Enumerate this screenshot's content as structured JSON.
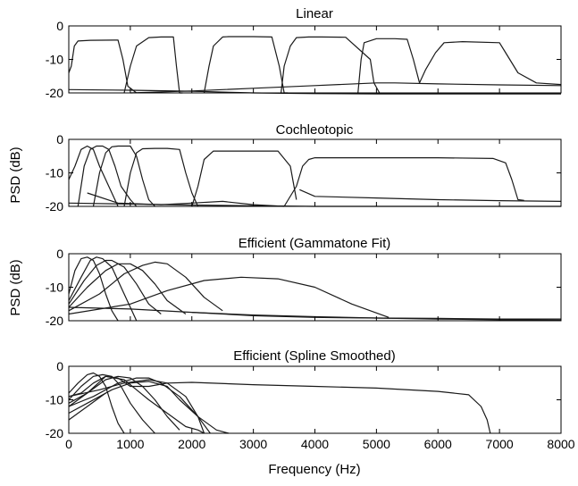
{
  "figure": {
    "xlabel": "Frequency (Hz)",
    "ylabel": "PSD (dB)"
  },
  "chart_data": [
    {
      "type": "line",
      "title": "Linear",
      "xlim": [
        0,
        8000
      ],
      "ylim": [
        -20,
        0
      ],
      "xticks": [],
      "yticks": [
        "0",
        "-10",
        "-20"
      ],
      "ylabel": "",
      "xlabel": "",
      "series": [
        {
          "x": [
            0,
            40,
            90,
            150,
            350,
            800,
            880,
            960,
            1100
          ],
          "y": [
            -14,
            -12,
            -6,
            -4.5,
            -4.3,
            -4.2,
            -10,
            -18,
            -20
          ]
        },
        {
          "x": [
            900,
            1000,
            1100,
            1300,
            1500,
            1700,
            1750,
            1800,
            1850
          ],
          "y": [
            -20,
            -12,
            -6,
            -3.5,
            -3.3,
            -3.3,
            -12,
            -20,
            -20
          ]
        },
        {
          "x": [
            2200,
            2280,
            2350,
            2500,
            2600,
            3000,
            3300,
            3420,
            3500,
            3560
          ],
          "y": [
            -20,
            -12,
            -6,
            -3.3,
            -3.2,
            -3.2,
            -3.3,
            -12,
            -20,
            -20
          ]
        },
        {
          "x": [
            3450,
            3500,
            3600,
            3700,
            3900,
            4100,
            4500,
            4900,
            4960,
            5050
          ],
          "y": [
            -20,
            -12,
            -6,
            -3.5,
            -3.3,
            -3.3,
            -3.4,
            -10,
            -17,
            -20
          ]
        },
        {
          "x": [
            4700,
            4750,
            4800,
            5000,
            5300,
            5500,
            5600,
            5700
          ],
          "y": [
            -20,
            -10,
            -5,
            -3.8,
            -3.8,
            -4,
            -10,
            -17
          ]
        },
        {
          "x": [
            5700,
            5800,
            5960,
            6100,
            6400,
            7000,
            7100,
            7300,
            7600,
            8000
          ],
          "y": [
            -17,
            -13,
            -8,
            -5,
            -4.7,
            -5,
            -8,
            -14,
            -17,
            -17.5
          ]
        },
        {
          "x": [
            0,
            1000,
            2000,
            3000,
            4000,
            5000,
            6000,
            7000,
            8000
          ],
          "y": [
            -19,
            -19.2,
            -19.5,
            -20,
            -20.2,
            -20.3,
            -20.3,
            -20.3,
            -20.3
          ]
        },
        {
          "x": [
            1000,
            2000,
            3000,
            4000,
            5000,
            5300,
            6000,
            7000,
            8000
          ],
          "y": [
            -20,
            -19.4,
            -18.6,
            -17.8,
            -17,
            -17,
            -17.3,
            -17.6,
            -17.8
          ]
        }
      ]
    },
    {
      "type": "line",
      "title": "Cochleotopic",
      "xlim": [
        0,
        8000
      ],
      "ylim": [
        -20,
        0
      ],
      "xticks": [],
      "yticks": [
        "0",
        "-10",
        "-20"
      ],
      "ylabel": "PSD (dB)",
      "xlabel": "",
      "series": [
        {
          "x": [
            0,
            100,
            200,
            300,
            400,
            500,
            600,
            700,
            800
          ],
          "y": [
            -12,
            -8,
            -3,
            -2,
            -3,
            -8,
            -12,
            -16,
            -20
          ]
        },
        {
          "x": [
            150,
            250,
            350,
            450,
            550,
            650,
            750,
            850,
            1000,
            1100
          ],
          "y": [
            -20,
            -8,
            -3,
            -2,
            -2,
            -3,
            -8,
            -14,
            -18,
            -20
          ]
        },
        {
          "x": [
            400,
            500,
            600,
            700,
            800,
            1000,
            1100,
            1200,
            1300,
            1400
          ],
          "y": [
            -20,
            -10,
            -4,
            -2.2,
            -2,
            -2,
            -5,
            -12,
            -18,
            -20
          ]
        },
        {
          "x": [
            900,
            1000,
            1100,
            1200,
            1400,
            1600,
            1800,
            1900,
            2000,
            2100
          ],
          "y": [
            -20,
            -10,
            -4,
            -2.8,
            -2.7,
            -2.7,
            -3,
            -10,
            -16,
            -20
          ]
        },
        {
          "x": [
            2000,
            2100,
            2200,
            2350,
            2700,
            3000,
            3400,
            3600,
            3700
          ],
          "y": [
            -20,
            -14,
            -6,
            -3.5,
            -3.5,
            -3.5,
            -3.5,
            -8,
            -18
          ]
        },
        {
          "x": [
            3500,
            3700,
            3800,
            3900,
            4000,
            4500,
            5000,
            6000,
            6900,
            7100,
            7200,
            7300,
            7400
          ],
          "y": [
            -20,
            -14,
            -8,
            -6,
            -5.5,
            -5.5,
            -5.5,
            -5.5,
            -5.7,
            -7,
            -12,
            -18,
            -18.2
          ]
        },
        {
          "x": [
            3750,
            4000,
            5000,
            6000,
            7000,
            8000
          ],
          "y": [
            -15,
            -17,
            -17.5,
            -18,
            -18.3,
            -18.5
          ]
        },
        {
          "x": [
            0,
            1000,
            2000,
            3000,
            4000,
            5000,
            6000,
            7000,
            8000
          ],
          "y": [
            -19,
            -19.3,
            -19.6,
            -19.8,
            -20,
            -20,
            -20,
            -20,
            -20
          ]
        },
        {
          "x": [
            300,
            800,
            1500,
            2000,
            2500,
            3000,
            3500
          ],
          "y": [
            -16,
            -19,
            -19.5,
            -19,
            -18.5,
            -19.5,
            -20
          ]
        }
      ]
    },
    {
      "type": "line",
      "title": "Efficient (Gammatone Fit)",
      "xlim": [
        0,
        8000
      ],
      "ylim": [
        -20,
        0
      ],
      "xticks": [],
      "yticks": [
        "0",
        "-10",
        "-20"
      ],
      "ylabel": "PSD (dB)",
      "xlabel": "",
      "series": [
        {
          "x": [
            0,
            100,
            200,
            300,
            400,
            500,
            600,
            700,
            800
          ],
          "y": [
            -12,
            -5,
            -1.5,
            -1,
            -2,
            -6,
            -12,
            -17,
            -20
          ]
        },
        {
          "x": [
            0,
            200,
            350,
            450,
            550,
            700,
            850,
            1000,
            1100
          ],
          "y": [
            -14,
            -7,
            -2,
            -1,
            -1.5,
            -4,
            -10,
            -16,
            -20
          ]
        },
        {
          "x": [
            0,
            250,
            450,
            600,
            700,
            900,
            1100,
            1300,
            1500
          ],
          "y": [
            -15,
            -8,
            -3.5,
            -2,
            -2,
            -4,
            -9,
            -15,
            -18
          ]
        },
        {
          "x": [
            0,
            300,
            600,
            800,
            1000,
            1200,
            1400,
            1600,
            1900
          ],
          "y": [
            -16,
            -10,
            -5,
            -3,
            -3,
            -5,
            -9,
            -14,
            -18
          ]
        },
        {
          "x": [
            0,
            500,
            900,
            1200,
            1400,
            1600,
            1900,
            2200,
            2500
          ],
          "y": [
            -17,
            -12,
            -6,
            -3.5,
            -2.5,
            -3,
            -7,
            -13,
            -17
          ]
        },
        {
          "x": [
            0,
            1000,
            1600,
            2200,
            2800,
            3400,
            4000,
            4600,
            5200
          ],
          "y": [
            -18,
            -15,
            -11,
            -8,
            -7,
            -7.5,
            -10,
            -15,
            -19
          ]
        },
        {
          "x": [
            0,
            1000,
            2000,
            3000,
            4000,
            5000,
            6000,
            7000,
            8000
          ],
          "y": [
            -16,
            -16.5,
            -17.5,
            -18.5,
            -19,
            -19.2,
            -19.3,
            -19.5,
            -19.5
          ]
        },
        {
          "x": [
            2000,
            3000,
            4000,
            5000,
            6000,
            7000,
            8000
          ],
          "y": [
            -17.5,
            -18.3,
            -18.8,
            -19.2,
            -19.5,
            -19.7,
            -19.8
          ]
        }
      ]
    },
    {
      "type": "line",
      "title": "Efficient (Spline Smoothed)",
      "xlim": [
        0,
        8000
      ],
      "ylim": [
        -20,
        0
      ],
      "xticks": [
        "0",
        "1000",
        "2000",
        "3000",
        "4000",
        "5000",
        "6000",
        "7000",
        "8000"
      ],
      "yticks": [
        "0",
        "-10",
        "-20"
      ],
      "ylabel": "",
      "xlabel": "Frequency (Hz)",
      "series": [
        {
          "x": [
            0,
            150,
            300,
            400,
            500,
            600,
            700,
            800,
            900
          ],
          "y": [
            -8,
            -5,
            -2.5,
            -2,
            -3,
            -6,
            -12,
            -17,
            -20
          ]
        },
        {
          "x": [
            0,
            200,
            400,
            550,
            700,
            850,
            1000,
            1200,
            1400
          ],
          "y": [
            -10,
            -6,
            -3,
            -2.5,
            -3,
            -6,
            -11,
            -16,
            -20
          ]
        },
        {
          "x": [
            0,
            300,
            600,
            800,
            1000,
            1200,
            1400,
            1600,
            1800
          ],
          "y": [
            -11,
            -8,
            -4,
            -3,
            -3.5,
            -6,
            -10,
            -15,
            -19
          ]
        },
        {
          "x": [
            0,
            400,
            800,
            1100,
            1300,
            1500,
            1800,
            2100,
            2300
          ],
          "y": [
            -12,
            -9,
            -5,
            -3.5,
            -3.5,
            -5,
            -9,
            -15,
            -20
          ]
        },
        {
          "x": [
            0,
            500,
            900,
            1300,
            1600,
            1900,
            2100,
            2200
          ],
          "y": [
            -9,
            -7,
            -5,
            -4,
            -5,
            -9,
            -15,
            -20
          ]
        },
        {
          "x": [
            0,
            300,
            700,
            1000,
            1300,
            1600,
            1800,
            2100,
            2400,
            2600
          ],
          "y": [
            -14,
            -11,
            -7,
            -5,
            -4.5,
            -6,
            -10,
            -15,
            -19,
            -20
          ]
        },
        {
          "x": [
            0,
            300,
            600,
            900,
            1100,
            1300,
            1600,
            1900,
            2100,
            2200
          ],
          "y": [
            -12,
            -8,
            -3,
            -4,
            -7,
            -10,
            -14,
            -18,
            -19,
            -20
          ]
        },
        {
          "x": [
            0,
            200,
            400,
            600,
            800,
            1000,
            1300,
            1600,
            2000,
            3000,
            4000,
            5000,
            6000,
            6500,
            6700,
            6800,
            6850
          ],
          "y": [
            -9,
            -8,
            -5,
            -3,
            -3.5,
            -6,
            -6,
            -5,
            -4.8,
            -5.5,
            -6,
            -6.5,
            -7.5,
            -8.5,
            -12,
            -16,
            -20
          ]
        },
        {
          "x": [
            0,
            150,
            300,
            450,
            600
          ],
          "y": [
            -16,
            -14,
            -12,
            -10,
            -8
          ]
        }
      ]
    }
  ]
}
